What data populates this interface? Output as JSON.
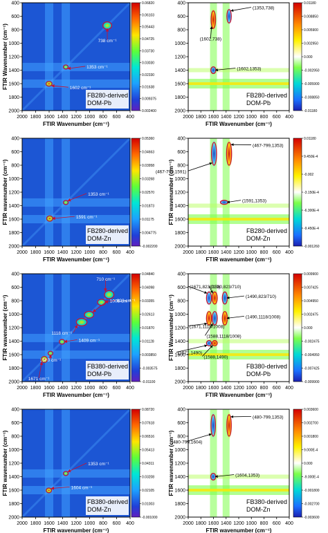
{
  "colors": {
    "sync_base": "#1c56d4",
    "async_base": "#ffffff",
    "circle": "#c8102e",
    "arrow": "#c8102e",
    "label_box": "#ffffff"
  },
  "chart_data": [
    {
      "type": "heatmap",
      "kind": "synchronous",
      "xlabel": "FTIR Wavenumber (cm⁻¹)",
      "ylabel": "FTIR Wavenumber (cm⁻¹)",
      "xlim": [
        2000,
        400
      ],
      "ylim": [
        400,
        2000
      ],
      "xticks": [
        "2000",
        "1800",
        "1600",
        "1400",
        "1200",
        "1000",
        "800",
        "600",
        "400"
      ],
      "yticks": [
        "400",
        "600",
        "800",
        "1000",
        "1200",
        "1400",
        "1600",
        "1800",
        "2000"
      ],
      "colorbar": [
        "0.06820",
        "0.06103",
        "0.05443",
        "0.04725",
        "0.03730",
        "0.03030",
        "0.02330",
        "0.01638",
        "0.009375",
        "0.002400"
      ],
      "sample_label": [
        "FB280-derived",
        "DOM-Pb"
      ],
      "peaks": [
        {
          "label": "738 cm⁻¹",
          "x": 738,
          "y": 738,
          "rx": 65,
          "ry": 55
        },
        {
          "label": "1353 cm⁻¹",
          "x": 1353,
          "y": 1353,
          "rx": 35,
          "ry": 30
        },
        {
          "label": "1602 cm⁻¹",
          "x": 1602,
          "y": 1602,
          "rx": 45,
          "ry": 35
        }
      ]
    },
    {
      "type": "heatmap",
      "kind": "asynchronous",
      "xlabel": "FTIR Wavenumber (cm⁻¹)",
      "ylabel": "",
      "xlim": [
        2000,
        400
      ],
      "ylim": [
        400,
        2000
      ],
      "xticks": [
        "2000",
        "1800",
        "1600",
        "1400",
        "1200",
        "1000",
        "800",
        "600",
        "400"
      ],
      "yticks": [
        "400",
        "600",
        "800",
        "1000",
        "1200",
        "1400",
        "1600",
        "1800",
        "2000"
      ],
      "colorbar": [
        "0.01180",
        "0.008850",
        "0.005900",
        "0.002950",
        "0.000",
        "-0.002950",
        "-0.005900",
        "-0.008850",
        "-0.01180"
      ],
      "sample_label": [
        "FB280-derived",
        "DOM-Pb"
      ],
      "peaks": [
        {
          "label": "(1353,738)",
          "x": 1353,
          "y": 600,
          "rx": 35,
          "ry": 100
        },
        {
          "label": "(1602,738)",
          "x": 1602,
          "y": 650,
          "rx": 35,
          "ry": 130
        },
        {
          "label": "(1602,1353)",
          "x": 1602,
          "y": 1400,
          "rx": 40,
          "ry": 50
        }
      ]
    },
    {
      "type": "heatmap",
      "kind": "synchronous",
      "xlabel": "FTIR Wavenumber (cm⁻¹)",
      "ylabel": "FTIR wavenumber (cm⁻¹)",
      "xlim": [
        2000,
        400
      ],
      "ylim": [
        400,
        2000
      ],
      "xticks": [
        "2000",
        "1800",
        "1600",
        "1400",
        "1200",
        "1000",
        "800",
        "600",
        "400"
      ],
      "yticks": [
        "400",
        "600",
        "800",
        "1000",
        "1200",
        "1400",
        "1600",
        "1800",
        "2000"
      ],
      "colorbar": [
        "0.05360",
        "0.04663",
        "0.03958",
        "0.03268",
        "0.02570",
        "0.01873",
        "0.01175",
        "0.004775",
        "-0.002200"
      ],
      "sample_label": [
        "FB280-derived",
        "DOM-Zn"
      ],
      "peaks": [
        {
          "label": "1353 cm⁻¹",
          "x": 1353,
          "y": 1353,
          "rx": 35,
          "ry": 30
        },
        {
          "label": "1591 cm⁻¹",
          "x": 1591,
          "y": 1591,
          "rx": 45,
          "ry": 40
        }
      ]
    },
    {
      "type": "heatmap",
      "kind": "asynchronous",
      "xlabel": "FTIR wavenumber (cm⁻¹)",
      "ylabel": "FTIR wavenumber (cm⁻¹)",
      "xlim": [
        2000,
        400
      ],
      "ylim": [
        400,
        2000
      ],
      "xticks": [
        "2000",
        "1800",
        "1600",
        "1400",
        "1200",
        "1000",
        "800",
        "600",
        "400"
      ],
      "yticks": [
        "400",
        "600",
        "800",
        "1000",
        "1200",
        "1400",
        "1600",
        "1800",
        "2000"
      ],
      "colorbar": [
        "0.01180",
        "9.450E-4",
        "-0.002",
        "-3.150E-4",
        "-6.300E-4",
        "-9.450E-4",
        "-0.001260"
      ],
      "sample_label": [
        "FB280-derived",
        "DOM-Zn"
      ],
      "peaks": [
        {
          "label": "(467-799,1591)",
          "x": 1591,
          "y": 630,
          "rx": 40,
          "ry": 170
        },
        {
          "label": "(467-799,1353)",
          "x": 1353,
          "y": 630,
          "rx": 40,
          "ry": 170
        },
        {
          "label": "(1591,1353)",
          "x": 1430,
          "y": 1350,
          "rx": 60,
          "ry": 30
        }
      ]
    },
    {
      "type": "heatmap",
      "kind": "synchronous",
      "xlabel": "FTIR Wavenumber (cm⁻¹)",
      "ylabel": "FTIR wavenumber (cm⁻¹)",
      "xlim": [
        2000,
        400
      ],
      "ylim": [
        400,
        2000
      ],
      "xticks": [
        "2000",
        "1800",
        "1600",
        "1400",
        "1200",
        "1000",
        "800",
        "600",
        "400"
      ],
      "yticks": [
        "400",
        "600",
        "800",
        "1000",
        "1200",
        "1400",
        "1600",
        "1800",
        "2000"
      ],
      "colorbar": [
        "0.04840",
        "0.04098",
        "0.03355",
        "0.02613",
        "0.01870",
        "0.01128",
        "0.003850",
        "-0.003575",
        "-0.01100"
      ],
      "sample_label": [
        "FB380-derived",
        "DOM-Pb"
      ],
      "peaks": [
        {
          "label": "710 cm⁻¹",
          "x": 710,
          "y": 710,
          "rx": 70,
          "ry": 60
        },
        {
          "label": "823 cm⁻¹",
          "x": 823,
          "y": 823,
          "rx": 60,
          "ry": 45
        },
        {
          "label": "1008 cm⁻¹",
          "x": 1008,
          "y": 1008,
          "rx": 70,
          "ry": 50
        },
        {
          "label": "1118 cm⁻¹",
          "x": 1118,
          "y": 1118,
          "rx": 80,
          "ry": 55
        },
        {
          "label": "1409 cm⁻¹",
          "x": 1409,
          "y": 1409,
          "rx": 40,
          "ry": 35
        },
        {
          "label": "1580 cm⁻¹",
          "x": 1580,
          "y": 1580,
          "rx": 35,
          "ry": 30
        },
        {
          "label": "1671 cm⁻¹",
          "x": 1671,
          "y": 1671,
          "rx": 45,
          "ry": 45
        }
      ]
    },
    {
      "type": "heatmap",
      "kind": "asynchronous",
      "xlabel": "FTIR Wavenumber (cm⁻¹)",
      "ylabel": "FTIR Wavenumber (cm⁻¹)",
      "xlim": [
        2000,
        400
      ],
      "ylim": [
        400,
        2000
      ],
      "xticks": [
        "2000",
        "1800",
        "1600",
        "1400",
        "1200",
        "1000",
        "800",
        "600",
        "400"
      ],
      "yticks": [
        "400",
        "600",
        "800",
        "1000",
        "1200",
        "1400",
        "1600",
        "1800",
        "2000"
      ],
      "colorbar": [
        "0.009900",
        "0.007425",
        "0.004950",
        "0.002475",
        "0.000",
        "-0.002475",
        "-0.004950",
        "-0.007425",
        "-0.009900"
      ],
      "sample_label": [
        "FB380-derived",
        "DOM-Pb"
      ],
      "peaks": [
        {
          "label": "(1671,823/710)",
          "x": 1671,
          "y": 760,
          "rx": 40,
          "ry": 90
        },
        {
          "label": "(1580,823/710)",
          "x": 1580,
          "y": 760,
          "rx": 40,
          "ry": 90
        },
        {
          "label": "(1490,823/710)",
          "x": 1420,
          "y": 760,
          "rx": 40,
          "ry": 90
        },
        {
          "label": "(1671,1118/1008)",
          "x": 1671,
          "y": 1060,
          "rx": 40,
          "ry": 100
        },
        {
          "label": "(1588,1118/1008)",
          "x": 1580,
          "y": 1060,
          "rx": 40,
          "ry": 100
        },
        {
          "label": "(1490,1118/1008)",
          "x": 1420,
          "y": 1060,
          "rx": 40,
          "ry": 100
        },
        {
          "label": "(1671,1490)",
          "x": 1671,
          "y": 1430,
          "rx": 40,
          "ry": 40
        },
        {
          "label": "(1588,1490)",
          "x": 1580,
          "y": 1430,
          "rx": 40,
          "ry": 40
        }
      ]
    },
    {
      "type": "heatmap",
      "kind": "synchronous",
      "xlabel": "FTIR wavenumber (cm⁻¹)",
      "ylabel": "FTIR wavenumber (cm⁻¹)",
      "xlim": [
        2000,
        400
      ],
      "ylim": [
        400,
        2000
      ],
      "xticks": [
        "2000",
        "1800",
        "1600",
        "1400",
        "1200",
        "1000",
        "800",
        "600",
        "400"
      ],
      "yticks": [
        "400",
        "600",
        "800",
        "1000",
        "1200",
        "1400",
        "1600",
        "1800",
        "2000"
      ],
      "colorbar": [
        "0.08720",
        "0.07618",
        "0.06516",
        "0.05413",
        "0.04311",
        "0.03208",
        "0.02105",
        "0.01003",
        "-0.001000"
      ],
      "sample_label": [
        "FB380-derived",
        "DOM-Zn"
      ],
      "peaks": [
        {
          "label": "1353 cm⁻¹",
          "x": 1353,
          "y": 1353,
          "rx": 35,
          "ry": 30
        },
        {
          "label": "1604 cm⁻¹",
          "x": 1604,
          "y": 1604,
          "rx": 40,
          "ry": 35
        }
      ]
    },
    {
      "type": "heatmap",
      "kind": "asynchronous",
      "xlabel": "FTIR wavenumber (cm⁻¹)",
      "ylabel": "FTIR wavenumber (cm⁻¹)",
      "xlim": [
        2000,
        400
      ],
      "ylim": [
        400,
        2000
      ],
      "xticks": [
        "2000",
        "1800",
        "1600",
        "1400",
        "1200",
        "1000",
        "800",
        "600",
        "400"
      ],
      "yticks": [
        "400",
        "600",
        "800",
        "1000",
        "1200",
        "1400",
        "1600",
        "1800",
        "2000"
      ],
      "colorbar": [
        "0.003600",
        "0.002700",
        "0.001800",
        "9.000E-4",
        "0.000",
        "-9.000E-4",
        "-0.001800",
        "-0.002700",
        "-0.003600"
      ],
      "sample_label": [
        "FB380-derived",
        "DOM-Zn"
      ],
      "peaks": [
        {
          "label": "(480-799,1604)",
          "x": 1604,
          "y": 640,
          "rx": 35,
          "ry": 160
        },
        {
          "label": "(480-799,1353)",
          "x": 1353,
          "y": 640,
          "rx": 35,
          "ry": 160
        },
        {
          "label": "(1604,1353)",
          "x": 1604,
          "y": 1400,
          "rx": 40,
          "ry": 50
        }
      ]
    }
  ]
}
